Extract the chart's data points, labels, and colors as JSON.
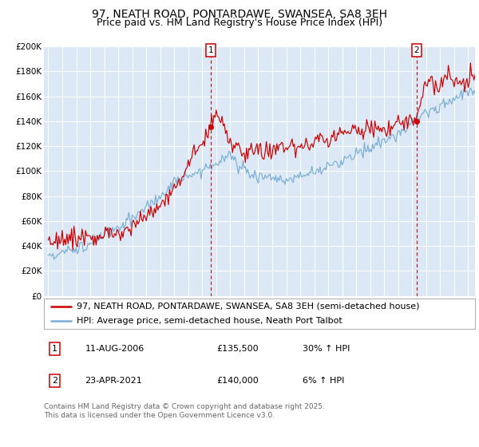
{
  "title1": "97, NEATH ROAD, PONTARDAWE, SWANSEA, SA8 3EH",
  "title2": "Price paid vs. HM Land Registry's House Price Index (HPI)",
  "ylim": [
    0,
    200000
  ],
  "xlim_start": 1994.7,
  "xlim_end": 2025.5,
  "background_color": "#dce8f5",
  "grid_color": "#ffffff",
  "legend_label_red": "97, NEATH ROAD, PONTARDAWE, SWANSEA, SA8 3EH (semi-detached house)",
  "legend_label_blue": "HPI: Average price, semi-detached house, Neath Port Talbot",
  "marker1_x": 2006.61,
  "marker1_y": 135500,
  "marker2_x": 2021.31,
  "marker2_y": 140000,
  "vline1_x": 2006.61,
  "vline2_x": 2021.31,
  "annotation1": [
    "1",
    "11-AUG-2006",
    "£135,500",
    "30% ↑ HPI"
  ],
  "annotation2": [
    "2",
    "23-APR-2021",
    "£140,000",
    "6% ↑ HPI"
  ],
  "footer": "Contains HM Land Registry data © Crown copyright and database right 2025.\nThis data is licensed under the Open Government Licence v3.0.",
  "red_color": "#cc0000",
  "blue_color": "#7aafd4",
  "title_fontsize": 10,
  "subtitle_fontsize": 9,
  "tick_fontsize": 7.5,
  "legend_fontsize": 8,
  "ann_fontsize": 8,
  "footer_fontsize": 6.5
}
